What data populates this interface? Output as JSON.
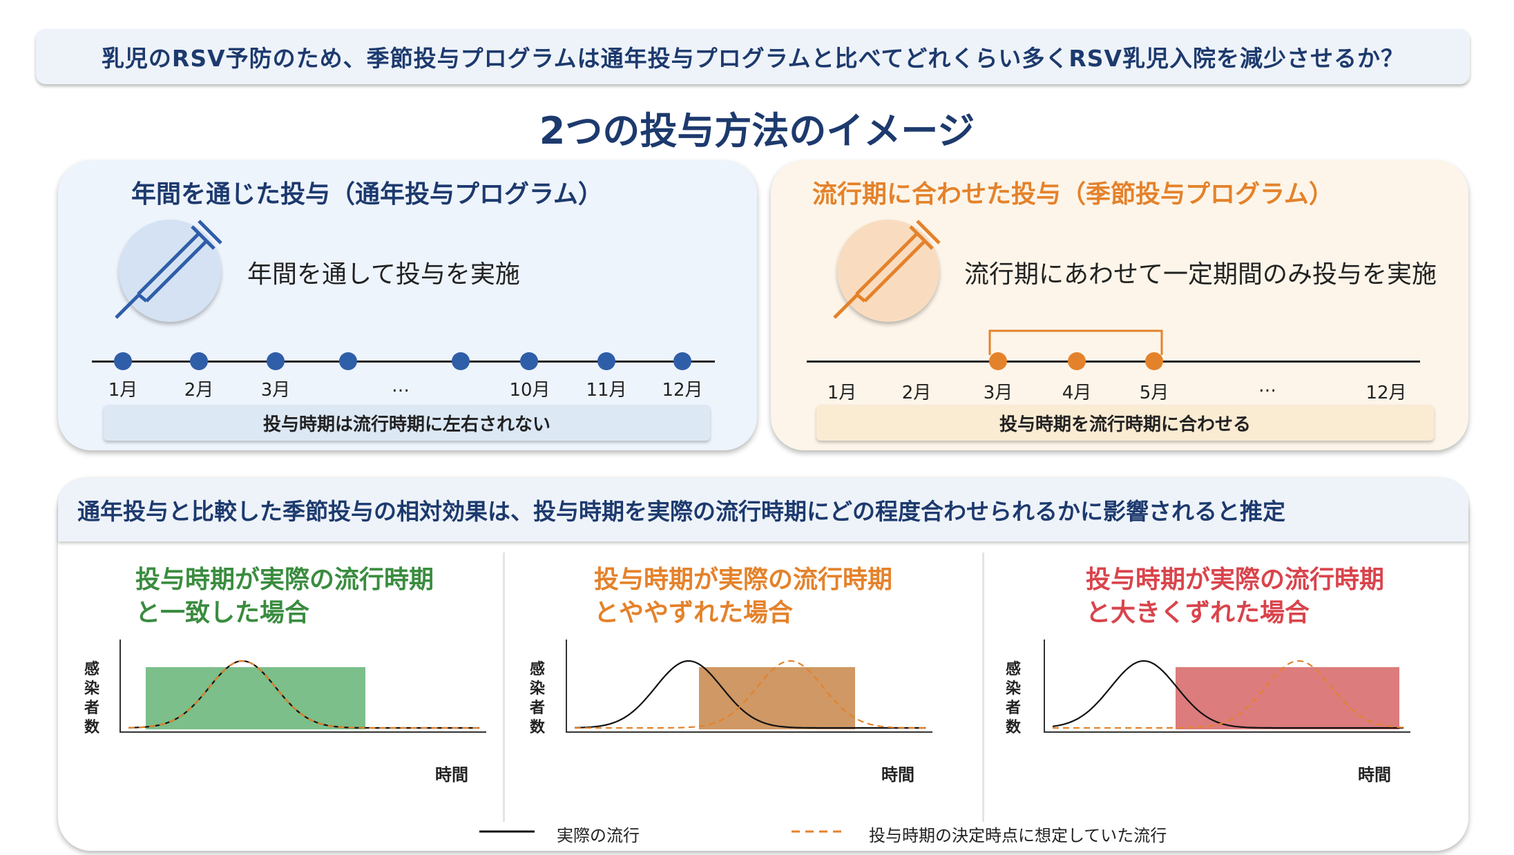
{
  "question": "乳児のRSV予防のため、季節投与プログラムは通年投与プログラムと比べてどれくらい多くRSV乳児入院を減少させるか？",
  "main_title": "2つの投与方法のイメージ",
  "colors": {
    "navy": "#1d3a6e",
    "blue": "#2f5ea8",
    "orange": "#e4822b",
    "green": "#3a8c3f",
    "red": "#d9444c"
  },
  "left_panel": {
    "title": "年間を通じた投与（通年投与プログラム）",
    "icon": "syringe-icon",
    "description": "年間を通して投与を実施",
    "months": [
      "1月",
      "2月",
      "3月",
      "…",
      "10月",
      "11月",
      "12月"
    ],
    "bar_text": "投与時期は流行時期に左右されない"
  },
  "right_panel": {
    "title": "流行期に合わせた投与（季節投与プログラム）",
    "icon": "syringe-icon",
    "description": "流行期にあわせて一定期間のみ投与を実施",
    "months": [
      "1月",
      "2月",
      "3月",
      "4月",
      "5月",
      "…",
      "12月"
    ],
    "bar_text": "投与時期を流行時期に合わせる"
  },
  "bottom_heading": "通年投与と比較した季節投与の相対効果は、投与時期を実際の流行時期にどの程度合わせられるかに影響されると推定",
  "cases": [
    {
      "title_line1": "投与時期が実際の流行時期",
      "title_line2": "と一致した場合",
      "color": "#3a8c3f",
      "fill": "#7cbf8a",
      "ylabel": "感染者数",
      "xlabel": "時間",
      "offset": "none"
    },
    {
      "title_line1": "投与時期が実際の流行時期",
      "title_line2": "とややずれた場合",
      "color": "#e4822b",
      "fill": "#cf9864",
      "ylabel": "感染者数",
      "xlabel": "時間",
      "offset": "slight"
    },
    {
      "title_line1": "投与時期が実際の流行時期",
      "title_line2": "と大きくずれた場合",
      "color": "#d9444c",
      "fill": "#dc7c7c",
      "ylabel": "感染者数",
      "xlabel": "時間",
      "offset": "large"
    }
  ],
  "legend": {
    "actual": "実際の流行",
    "assumed": "投与時期の決定時点に想定していた流行"
  }
}
